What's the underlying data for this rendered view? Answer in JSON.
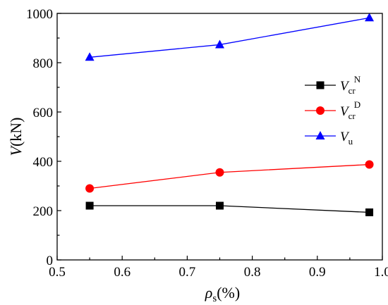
{
  "chart_data": {
    "type": "line",
    "xlabel": {
      "main": "ρ",
      "sub": "s",
      "unit": "(%)"
    },
    "ylabel": {
      "main": "V",
      "unit": "(kN)"
    },
    "xlim": [
      0.5,
      1.0
    ],
    "ylim": [
      0,
      1000
    ],
    "xticks": [
      "0.5",
      "0.6",
      "0.7",
      "0.8",
      "0.9",
      "1.0"
    ],
    "yticks": [
      "0",
      "200",
      "400",
      "600",
      "800",
      "1000"
    ],
    "grid": false,
    "legend_position": "right",
    "series": [
      {
        "name": "Vcr^N",
        "label": {
          "main": "V",
          "sub": "cr",
          "sup": "N"
        },
        "color": "#000000",
        "marker": "square",
        "x": [
          0.55,
          0.75,
          0.98
        ],
        "y": [
          220,
          220,
          193
        ]
      },
      {
        "name": "Vcr^D",
        "label": {
          "main": "V",
          "sub": "cr",
          "sup": "D"
        },
        "color": "#ff0000",
        "marker": "circle",
        "x": [
          0.55,
          0.75,
          0.98
        ],
        "y": [
          290,
          355,
          387
        ]
      },
      {
        "name": "Vu",
        "label": {
          "main": "V",
          "sub": "u",
          "sup": ""
        },
        "color": "#0000ff",
        "marker": "triangle",
        "x": [
          0.55,
          0.75,
          0.98
        ],
        "y": [
          822,
          873,
          982
        ]
      }
    ]
  }
}
